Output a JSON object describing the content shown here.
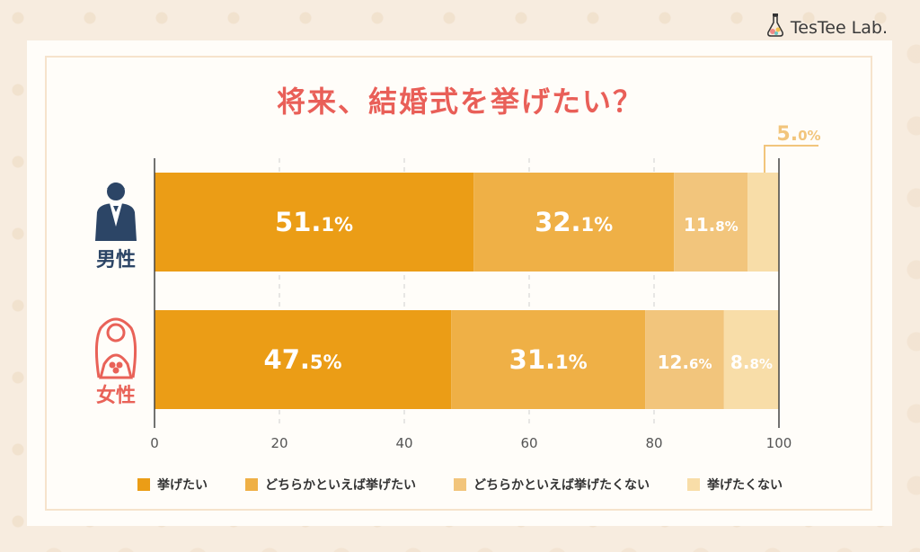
{
  "brand": {
    "name": "TesTee Lab."
  },
  "title": "将来、結婚式を挙げたい？",
  "colors": {
    "accent_title": "#e95f58",
    "male": "#2c4566",
    "female": "#e96258",
    "series": [
      "#eb9d16",
      "#efb046",
      "#f2c57c",
      "#f8dda8"
    ]
  },
  "groups": [
    {
      "label": "男性",
      "icon": "groom-icon"
    },
    {
      "label": "女性",
      "icon": "bride-icon"
    }
  ],
  "chart_data": {
    "type": "bar",
    "orientation": "horizontal",
    "stacked": true,
    "categories": [
      "男性",
      "女性"
    ],
    "series": [
      {
        "name": "挙げたい",
        "values": [
          51.1,
          47.5
        ],
        "labels": [
          [
            "51.",
            "1%"
          ],
          [
            "47.",
            "5%"
          ]
        ]
      },
      {
        "name": "どちらかといえば挙げたい",
        "values": [
          32.1,
          31.1
        ],
        "labels": [
          [
            "32.",
            "1%"
          ],
          [
            "31.",
            "1%"
          ]
        ]
      },
      {
        "name": "どちらかといえば挙げたくない",
        "values": [
          11.8,
          12.6
        ],
        "labels": [
          [
            "11.",
            "8%"
          ],
          [
            "12.",
            "6%"
          ]
        ]
      },
      {
        "name": "挙げたくない",
        "values": [
          5.0,
          8.8
        ],
        "labels": [
          [
            "5.",
            "0%"
          ],
          [
            "8.",
            "8%"
          ]
        ]
      }
    ],
    "xlim": [
      0,
      100
    ],
    "xticks": [
      "0",
      "20",
      "40",
      "60",
      "80",
      "100"
    ],
    "grid": true,
    "legend": "bottom"
  }
}
